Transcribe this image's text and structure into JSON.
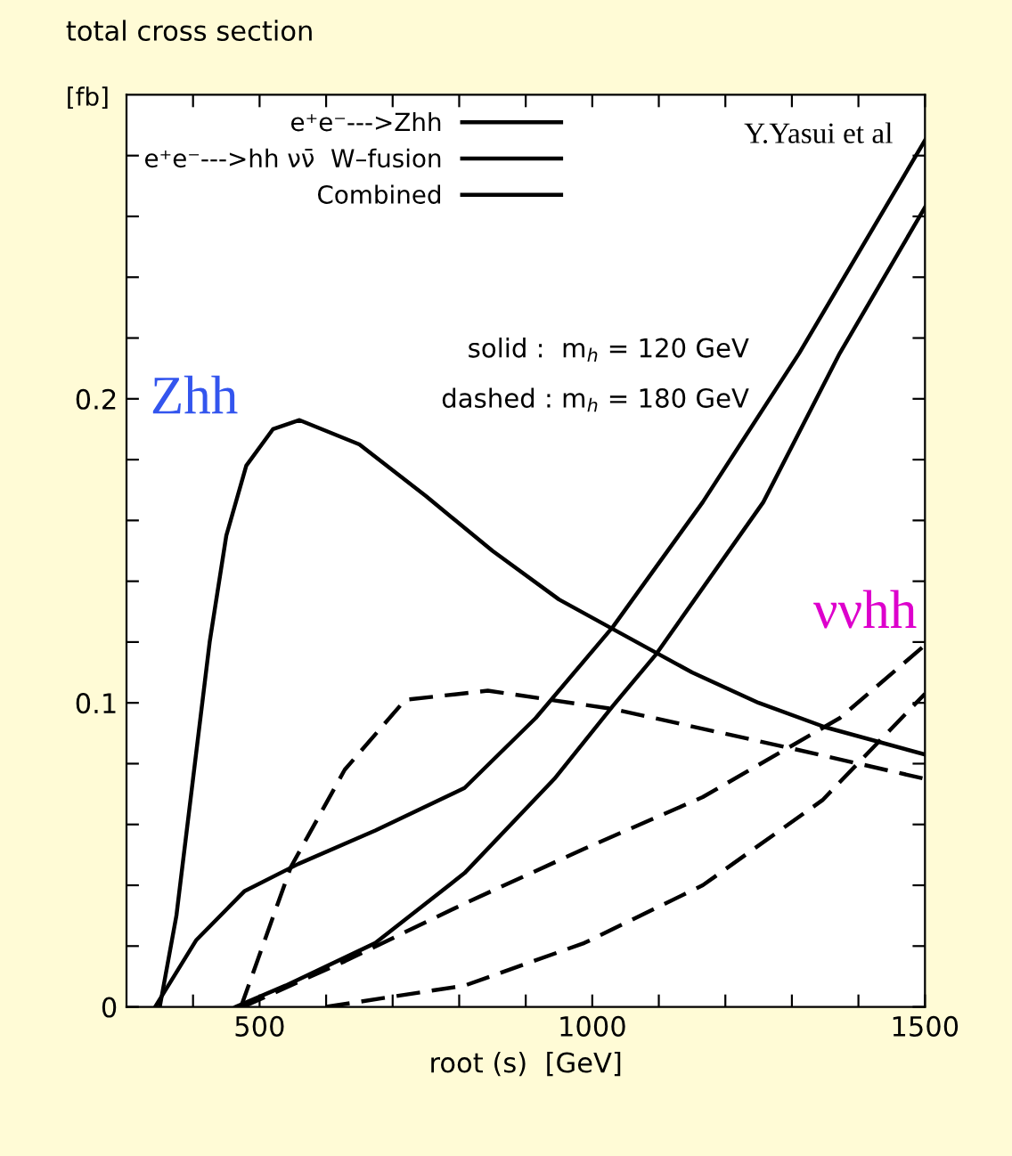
{
  "chart_data": {
    "type": "line",
    "title": "total cross section",
    "xlabel": "root (s)  [GeV]",
    "ylabel": "[fb]",
    "xlim": [
      300,
      1500
    ],
    "ylim": [
      0,
      0.3
    ],
    "xticks": [
      {
        "value": 400,
        "label": null
      },
      500,
      {
        "value": 600,
        "label": null
      },
      {
        "value": 700,
        "label": null
      },
      {
        "value": 800,
        "label": null
      },
      {
        "value": 900,
        "label": null
      },
      1000,
      {
        "value": 1100,
        "label": null
      },
      {
        "value": 1200,
        "label": null
      },
      {
        "value": 1300,
        "label": null
      },
      {
        "value": 1400,
        "label": null
      },
      1500
    ],
    "yticks": [
      0,
      {
        "value": 0.02,
        "label": null
      },
      {
        "value": 0.04,
        "label": null
      },
      {
        "value": 0.06,
        "label": null
      },
      {
        "value": 0.08,
        "label": null
      },
      0.1,
      {
        "value": 0.12,
        "label": null
      },
      {
        "value": 0.14,
        "label": null
      },
      {
        "value": 0.16,
        "label": null
      },
      {
        "value": 0.18,
        "label": null
      },
      0.2,
      {
        "value": 0.22,
        "label": null
      },
      {
        "value": 0.24,
        "label": null
      },
      {
        "value": 0.26,
        "label": null
      },
      {
        "value": 0.28,
        "label": null
      }
    ],
    "grid": false,
    "legend": "top left",
    "marker": "none",
    "series": [
      {
        "name": "e⁺e⁻--->Zhh",
        "color": "#000000",
        "line_style": "solid",
        "x": [
          350,
          375,
          400,
          425,
          450,
          480,
          520,
          560,
          650,
          750,
          850,
          950,
          1050,
          1150,
          1250,
          1350,
          1500
        ],
        "values": [
          0,
          0.03,
          0.075,
          0.12,
          0.155,
          0.178,
          0.19,
          0.193,
          0.185,
          0.168,
          0.15,
          0.134,
          0.122,
          0.11,
          0.1,
          0.092,
          0.083
        ]
      },
      {
        "name": "e⁺e⁻--->hh νν̄  W–fusion",
        "color": "#000000",
        "line_style": "solid",
        "x": [
          464,
          539,
          674,
          808,
          943,
          1031,
          1096,
          1257,
          1372,
          1500
        ],
        "values": [
          0,
          0.007,
          0.021,
          0.044,
          0.075,
          0.099,
          0.116,
          0.166,
          0.215,
          0.263
        ]
      },
      {
        "name": "Combined",
        "color": "#000000",
        "line_style": "solid",
        "x": [
          343,
          405,
          477,
          558,
          674,
          808,
          915,
          1031,
          1166,
          1311,
          1500
        ],
        "values": [
          0,
          0.022,
          0.038,
          0.047,
          0.058,
          0.072,
          0.095,
          0.125,
          0.166,
          0.215,
          0.285
        ]
      },
      {
        "color": "#000000",
        "line_style": "dashed",
        "x": [
          472,
          547,
          628,
          719,
          843,
          1031,
          1300,
          1500
        ],
        "values": [
          0,
          0.046,
          0.078,
          0.101,
          0.104,
          0.098,
          0.085,
          0.075
        ]
      },
      {
        "color": "#000000",
        "line_style": "dashed",
        "x": [
          475,
          628,
          808,
          988,
          1166,
          1372,
          1500
        ],
        "values": [
          0,
          0.015,
          0.034,
          0.052,
          0.069,
          0.095,
          0.119
        ]
      },
      {
        "color": "#000000",
        "line_style": "dashed",
        "x": [
          600,
          808,
          988,
          1166,
          1346,
          1500
        ],
        "values": [
          0,
          0.007,
          0.021,
          0.04,
          0.068,
          0.103
        ]
      }
    ],
    "annotations": [
      "Y.Yasui et al",
      "solid :  m$_{h}$ = 120 GeV",
      "dashed : m$_{h}$ = 180 GeV",
      "Zhh",
      "ννhh"
    ]
  }
}
